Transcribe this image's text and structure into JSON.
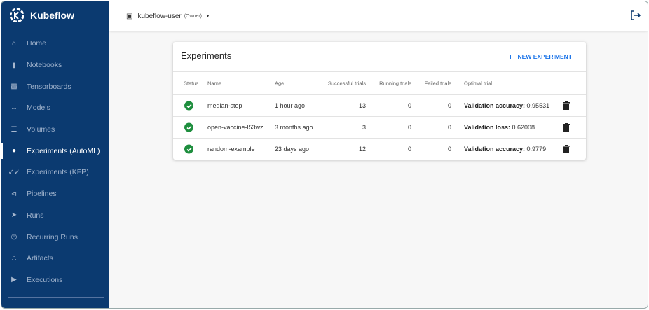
{
  "app": {
    "title": "Kubeflow"
  },
  "sidebar": {
    "items": [
      {
        "label": "Home",
        "icon": "home-icon"
      },
      {
        "label": "Notebooks",
        "icon": "notebook-icon"
      },
      {
        "label": "Tensorboards",
        "icon": "chart-icon"
      },
      {
        "label": "Models",
        "icon": "arrows-icon"
      },
      {
        "label": "Volumes",
        "icon": "storage-icon"
      },
      {
        "label": "Experiments (AutoML)",
        "icon": "experiment-icon",
        "active": true
      },
      {
        "label": "Experiments (KFP)",
        "icon": "check-done-icon"
      },
      {
        "label": "Pipelines",
        "icon": "pipeline-icon"
      },
      {
        "label": "Runs",
        "icon": "run-icon"
      },
      {
        "label": "Recurring Runs",
        "icon": "alarm-icon"
      },
      {
        "label": "Artifacts",
        "icon": "artifact-icon"
      },
      {
        "label": "Executions",
        "icon": "play-icon"
      }
    ]
  },
  "header": {
    "namespace": "kubeflow-user",
    "role": "(Owner)"
  },
  "card": {
    "title": "Experiments",
    "new_label": "NEW EXPERIMENT",
    "columns": [
      "Status",
      "Name",
      "Age",
      "Successful trials",
      "Running trials",
      "Failed trials",
      "Optimal trial"
    ],
    "rows": [
      {
        "name": "median-stop",
        "age": "1 hour ago",
        "successful": "13",
        "running": "0",
        "failed": "0",
        "metric": "Validation accuracy:",
        "value": " 0.95531"
      },
      {
        "name": "open-vaccine-l53wz",
        "age": "3 months ago",
        "successful": "3",
        "running": "0",
        "failed": "0",
        "metric": "Validation loss:",
        "value": " 0.62008"
      },
      {
        "name": "random-example",
        "age": "23 days ago",
        "successful": "12",
        "running": "0",
        "failed": "0",
        "metric": "Validation accuracy:",
        "value": " 0.9779"
      }
    ]
  },
  "colors": {
    "sidebar": "#0b3a70",
    "accent": "#1a73e8",
    "success": "#1e8e3e"
  }
}
